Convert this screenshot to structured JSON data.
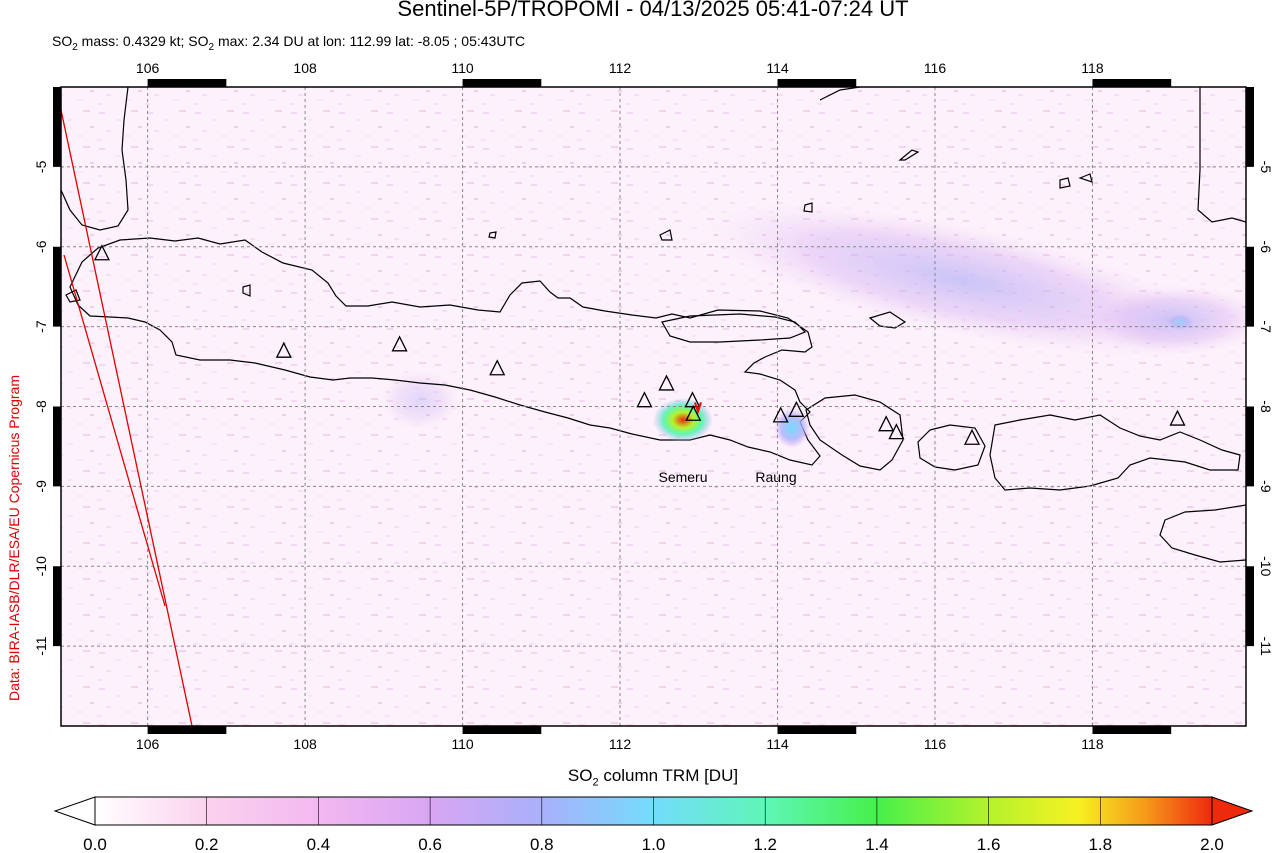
{
  "header": {
    "title": "Sentinel-5P/TROPOMI - 04/13/2025 05:41-07:24 UT",
    "stats": {
      "mass_label": "SO",
      "mass_sub": "2",
      "mass_value": " mass: 0.4329 kt; SO",
      "max_sub": "2",
      "max_value": " max: 2.34 DU at lon: 112.99 lat: -8.05 ; 05:43UTC"
    }
  },
  "credit": "Data: BIRA-IASB/DLR/ESA/EU Copernicus Program",
  "map": {
    "lon_ticks": [
      "106",
      "108",
      "110",
      "112",
      "114",
      "116",
      "118"
    ],
    "lat_ticks": [
      "-5",
      "-6",
      "-7",
      "-8",
      "-9",
      "-10",
      "-11"
    ],
    "volcano_labels": [
      "Semeru",
      "Raung"
    ],
    "volcanoes": [
      {
        "lon": 105.42,
        "lat": -6.1
      },
      {
        "lon": 107.73,
        "lat": -7.32
      },
      {
        "lon": 109.2,
        "lat": -7.24
      },
      {
        "lon": 110.44,
        "lat": -7.54
      },
      {
        "lon": 112.31,
        "lat": -7.94
      },
      {
        "lon": 112.59,
        "lat": -7.73
      },
      {
        "lon": 112.92,
        "lat": -7.94
      },
      {
        "lon": 112.93,
        "lat": -8.11
      },
      {
        "lon": 114.04,
        "lat": -8.13
      },
      {
        "lon": 114.24,
        "lat": -8.06
      },
      {
        "lon": 115.38,
        "lat": -8.24
      },
      {
        "lon": 115.51,
        "lat": -8.34
      },
      {
        "lon": 116.47,
        "lat": -8.41
      },
      {
        "lon": 119.08,
        "lat": -8.17
      }
    ],
    "max_marker": {
      "lon": 112.99,
      "lat": -8.05
    },
    "colors": {
      "coast": "#000000",
      "swath_edge": "#e00000",
      "marker": "#ff0000"
    }
  },
  "colorbar": {
    "title_prefix": "SO",
    "title_sub": "2",
    "title_suffix": " column TRM [DU]",
    "tick_labels": [
      "0.0",
      "0.2",
      "0.4",
      "0.6",
      "0.8",
      "1.0",
      "1.2",
      "1.4",
      "1.6",
      "1.8",
      "2.0"
    ],
    "range": [
      0.0,
      2.0
    ],
    "colors": [
      "#ffffff",
      "#fbd2ee",
      "#d8a6f2",
      "#a9b0fb",
      "#73dcfb",
      "#5ff6b8",
      "#46f04a",
      "#b5f22c",
      "#f7f122",
      "#f69a1a",
      "#ee2a0d"
    ]
  }
}
